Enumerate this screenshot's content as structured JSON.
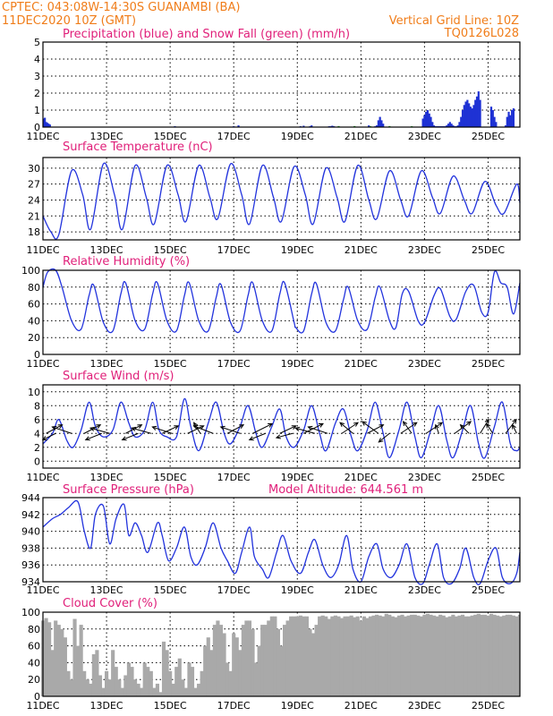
{
  "header": {
    "line1": "CPTEC:   043:08W-14:30S   GUANAMBI (BA)",
    "line2": "11DEC2020 10Z (GMT)",
    "grid_note": "Vertical Grid Line: 10Z",
    "code": "TQ0126L028"
  },
  "x_labels": [
    "11DEC",
    "13DEC",
    "15DEC",
    "17DEC",
    "19DEC",
    "21DEC",
    "23DEC",
    "25DEC"
  ],
  "panel_titles": {
    "precip": "Precipitation (blue) and Snow Fall (green) (mm/h)",
    "temp": "Surface Temperature (nC)",
    "rh": "Relative Humidity (%)",
    "wind": "Surface Wind (m/s)",
    "pres": "Surface Pressure (hPa)",
    "pres_alt": "Model Altitude: 644.561 m",
    "cloud": "Cloud Cover (%)"
  },
  "colors": {
    "header": "#f07d1a",
    "title": "#e0207a",
    "line": "#2233dd",
    "bars": "#a9a9a9",
    "precip": "#1f32d4",
    "snow": "#22aa22"
  },
  "chart_data": [
    {
      "id": "precip",
      "type": "bar",
      "title": "Precipitation (blue) and Snow Fall (green) (mm/h)",
      "ylim": [
        0,
        5
      ],
      "yticks": [
        0,
        1,
        2,
        3,
        4,
        5
      ],
      "x_units": "days since 11DEC 10Z",
      "series": [
        {
          "name": "Precipitation",
          "color": "#1f32d4",
          "x": [
            0.02,
            0.06,
            0.1,
            0.14,
            0.18,
            0.22,
            4.15,
            6.0,
            6.15,
            8.1,
            8.2,
            8.4,
            8.45,
            9.0,
            9.05,
            9.1,
            9.15,
            10.25,
            10.45,
            10.5,
            10.55,
            10.6,
            10.65,
            10.7,
            11.95,
            12.0,
            12.05,
            12.1,
            12.15,
            12.2,
            12.25,
            12.3,
            12.35,
            12.4,
            12.45,
            12.5,
            12.55,
            12.6,
            12.65,
            12.7,
            12.75,
            12.8,
            12.85,
            12.9,
            12.95,
            13.0,
            13.05,
            13.1,
            13.15,
            13.2,
            13.25,
            13.3,
            13.35,
            13.4,
            13.45,
            13.5,
            13.55,
            13.6,
            13.65,
            13.7,
            13.75,
            14.1,
            14.15,
            14.2,
            14.25,
            14.55,
            14.6,
            14.65,
            14.7,
            14.75,
            14.8
          ],
          "values": [
            0.5,
            0.55,
            0.3,
            0.25,
            0.2,
            0.15,
            0.05,
            0.05,
            0.1,
            0.05,
            0.08,
            0.05,
            0.1,
            0.05,
            0.05,
            0.08,
            0.05,
            0.1,
            0.05,
            0.1,
            0.4,
            0.6,
            0.4,
            0.2,
            0.5,
            0.7,
            0.9,
            1.0,
            0.8,
            0.6,
            0.3,
            0.1,
            0.05,
            0.05,
            0.05,
            0.05,
            0.05,
            0.05,
            0.05,
            0.1,
            0.2,
            0.3,
            0.2,
            0.1,
            0.05,
            0.05,
            0.1,
            0.3,
            0.6,
            1.0,
            1.3,
            1.5,
            1.6,
            1.4,
            1.2,
            1.1,
            1.3,
            1.6,
            1.8,
            2.1,
            1.6,
            1.2,
            1.0,
            0.6,
            0.3,
            0.1,
            0.6,
            0.9,
            0.7,
            1.0,
            1.1
          ]
        },
        {
          "name": "Snow Fall",
          "color": "#22aa22",
          "x": [
            9.3,
            9.8,
            10.3,
            10.9,
            11.6
          ],
          "values": [
            0.06,
            0.06,
            0.05,
            0.06,
            0.05
          ]
        }
      ]
    },
    {
      "id": "temp",
      "type": "line",
      "title": "Surface Temperature (nC)",
      "ylim": [
        16.5,
        32
      ],
      "yticks": [
        18,
        21,
        24,
        27,
        30
      ],
      "x": [
        0.0,
        0.25,
        0.5,
        0.9,
        1.25,
        1.5,
        1.9,
        2.25,
        2.5,
        2.9,
        3.25,
        3.5,
        3.9,
        4.25,
        4.5,
        4.9,
        5.25,
        5.5,
        5.9,
        6.25,
        6.5,
        6.9,
        7.25,
        7.5,
        7.9,
        8.25,
        8.5,
        8.9,
        9.25,
        9.5,
        9.9,
        10.25,
        10.5,
        10.9,
        11.25,
        11.5,
        11.9,
        12.25,
        12.5,
        12.9,
        13.25,
        13.5,
        13.9,
        14.25,
        14.5,
        14.9,
        15.0
      ],
      "series": [
        {
          "values": [
            21.0,
            18.0,
            17.5,
            29.5,
            25.0,
            18.5,
            30.8,
            25.0,
            18.5,
            30.5,
            24.5,
            19.5,
            30.5,
            25.0,
            20.0,
            30.5,
            24.5,
            20.5,
            30.8,
            25.0,
            19.5,
            30.5,
            24.5,
            20.0,
            30.3,
            25.0,
            19.5,
            30.0,
            24.5,
            20.0,
            30.5,
            24.0,
            20.5,
            29.5,
            24.0,
            21.0,
            29.5,
            24.5,
            21.5,
            28.5,
            24.0,
            21.5,
            27.5,
            23.0,
            21.5,
            27.0,
            23.5
          ]
        }
      ]
    },
    {
      "id": "rh",
      "type": "line",
      "title": "Relative Humidity (%)",
      "ylim": [
        0,
        100
      ],
      "yticks": [
        0,
        20,
        40,
        60,
        80,
        100
      ],
      "x": [
        0.0,
        0.15,
        0.4,
        0.6,
        0.9,
        1.2,
        1.45,
        1.6,
        1.9,
        2.2,
        2.45,
        2.6,
        2.9,
        3.2,
        3.45,
        3.6,
        3.9,
        4.2,
        4.45,
        4.6,
        4.9,
        5.2,
        5.45,
        5.6,
        5.9,
        6.2,
        6.45,
        6.6,
        6.9,
        7.2,
        7.45,
        7.6,
        7.9,
        7.95,
        8.2,
        8.45,
        8.6,
        8.9,
        9.2,
        9.45,
        9.6,
        9.9,
        10.2,
        10.45,
        10.6,
        10.9,
        11.1,
        11.3,
        11.5,
        11.8,
        12.0,
        12.3,
        12.5,
        12.8,
        13.0,
        13.3,
        13.55,
        13.8,
        14.0,
        14.2,
        14.4,
        14.6,
        14.8,
        15.0
      ],
      "series": [
        {
          "values": [
            80,
            98,
            100,
            80,
            40,
            30,
            70,
            82,
            38,
            28,
            72,
            85,
            40,
            30,
            72,
            85,
            40,
            28,
            70,
            85,
            40,
            28,
            68,
            83,
            38,
            28,
            70,
            85,
            40,
            28,
            72,
            85,
            38,
            32,
            28,
            72,
            84,
            38,
            28,
            65,
            80,
            40,
            30,
            68,
            80,
            40,
            32,
            72,
            75,
            40,
            38,
            70,
            78,
            45,
            42,
            75,
            82,
            50,
            50,
            98,
            85,
            80,
            48,
            85
          ]
        }
      ]
    },
    {
      "id": "wind",
      "type": "line",
      "title": "Surface Wind (m/s)",
      "ylim": [
        -1,
        11
      ],
      "yticks": [
        0,
        2,
        4,
        6,
        8,
        10
      ],
      "x": [
        0.0,
        0.3,
        0.5,
        0.75,
        0.95,
        1.2,
        1.45,
        1.65,
        1.9,
        2.2,
        2.45,
        2.7,
        2.9,
        3.2,
        3.45,
        3.65,
        3.9,
        4.2,
        4.45,
        4.65,
        4.9,
        5.2,
        5.45,
        5.7,
        5.9,
        6.2,
        6.45,
        6.7,
        6.9,
        7.2,
        7.45,
        7.65,
        7.9,
        8.2,
        8.45,
        8.7,
        8.9,
        9.2,
        9.45,
        9.7,
        9.9,
        10.2,
        10.45,
        10.7,
        10.9,
        11.2,
        11.45,
        11.7,
        11.9,
        12.2,
        12.45,
        12.7,
        12.9,
        13.2,
        13.45,
        13.7,
        13.9,
        14.2,
        14.45,
        14.7,
        14.9,
        15.0
      ],
      "series": [
        {
          "values": [
            2.5,
            4.0,
            6.0,
            3.0,
            2.0,
            4.5,
            8.5,
            5.0,
            3.5,
            4.5,
            8.5,
            5.5,
            3.5,
            4.5,
            8.5,
            4.5,
            3.5,
            3.5,
            9.0,
            5.0,
            1.5,
            5.5,
            8.5,
            4.0,
            2.5,
            5.0,
            8.0,
            4.0,
            2.0,
            5.0,
            7.5,
            3.5,
            2.0,
            4.5,
            8.0,
            4.0,
            1.5,
            5.5,
            7.5,
            3.5,
            1.5,
            4.5,
            8.5,
            4.0,
            0.5,
            4.5,
            8.5,
            3.5,
            0.5,
            4.5,
            8.0,
            3.0,
            0.5,
            4.5,
            8.0,
            2.5,
            0.5,
            5.0,
            8.5,
            2.5,
            1.5,
            2.0
          ]
        }
      ],
      "vectors": {
        "x": [
          0.1,
          0.4,
          0.9,
          1.3,
          1.85,
          2.1,
          2.6,
          3.0,
          3.4,
          3.75,
          4.05,
          4.55,
          4.95,
          5.35,
          5.8,
          6.2,
          6.6,
          7.0,
          7.45,
          7.85,
          8.2,
          8.55,
          8.95,
          9.4,
          9.75,
          10.2,
          10.55,
          10.9,
          11.25,
          11.6,
          12.05,
          12.45,
          12.95,
          13.4,
          13.75,
          14.15,
          14.55,
          14.9
        ],
        "u": [
          1.5,
          -1.2,
          -1.8,
          1.5,
          -1.5,
          -1.8,
          1.5,
          -1.5,
          -1.8,
          1.5,
          -1.8,
          1.5,
          -0.6,
          -1.8,
          1.5,
          -1.8,
          1.8,
          -1.5,
          1.5,
          -1.5,
          1.8,
          -1.8,
          -1.8,
          1.5,
          -1.2,
          1.5,
          -1.5,
          -1.0,
          1.5,
          -0.8,
          1.5,
          -0.3,
          1.5,
          -0.8,
          0.8,
          -0.6,
          1.0,
          -0.4
        ],
        "v": [
          0.8,
          -0.6,
          0.6,
          0.8,
          -0.6,
          0.5,
          0.8,
          -0.6,
          0.5,
          0.7,
          0.6,
          0.7,
          1.0,
          0.7,
          0.8,
          0.6,
          0.9,
          -0.6,
          0.7,
          -0.4,
          0.9,
          0.5,
          0.6,
          1.0,
          1.0,
          0.8,
          1.1,
          -0.8,
          1.0,
          1.1,
          1.0,
          0.8,
          1.1,
          0.8,
          1.3,
          0.9,
          1.3,
          0.8
        ]
      }
    },
    {
      "id": "pres",
      "type": "line",
      "title": "Surface Pressure (hPa)",
      "ylim": [
        934,
        944
      ],
      "yticks": [
        934,
        936,
        938,
        940,
        942,
        944
      ],
      "x": [
        0.0,
        0.3,
        0.55,
        0.8,
        1.1,
        1.3,
        1.5,
        1.65,
        1.9,
        2.1,
        2.3,
        2.55,
        2.7,
        2.9,
        3.1,
        3.3,
        3.6,
        3.75,
        3.95,
        4.2,
        4.45,
        4.65,
        4.85,
        5.1,
        5.35,
        5.6,
        5.8,
        6.05,
        6.25,
        6.5,
        6.65,
        6.9,
        7.1,
        7.35,
        7.55,
        7.8,
        8.1,
        8.35,
        8.55,
        8.8,
        9.05,
        9.3,
        9.55,
        9.75,
        10.0,
        10.25,
        10.5,
        10.7,
        10.95,
        11.2,
        11.45,
        11.7,
        11.95,
        12.15,
        12.4,
        12.6,
        12.85,
        13.1,
        13.3,
        13.55,
        13.75,
        14.0,
        14.25,
        14.45,
        14.7,
        14.9,
        15.0
      ],
      "series": [
        {
          "values": [
            940.5,
            941.5,
            942.0,
            942.8,
            943.5,
            940.0,
            938.0,
            942.0,
            943.0,
            938.5,
            941.5,
            943.2,
            939.5,
            941.0,
            939.5,
            937.5,
            941.0,
            939.5,
            936.5,
            938.0,
            940.5,
            937.0,
            936.0,
            938.0,
            941.0,
            938.0,
            936.5,
            935.0,
            937.5,
            940.5,
            937.0,
            935.5,
            934.5,
            937.5,
            939.5,
            936.5,
            935.0,
            937.5,
            939.0,
            936.0,
            934.5,
            936.0,
            939.5,
            935.5,
            934.0,
            937.0,
            938.5,
            935.5,
            934.5,
            936.0,
            938.5,
            934.5,
            933.5,
            936.0,
            938.5,
            934.5,
            933.5,
            935.5,
            938.0,
            934.5,
            933.5,
            936.5,
            938.0,
            934.5,
            933.5,
            935.0,
            937.5
          ]
        }
      ]
    },
    {
      "id": "cloud",
      "type": "bar",
      "title": "Cloud Cover (%)",
      "ylim": [
        0,
        100
      ],
      "yticks": [
        0,
        20,
        40,
        60,
        80,
        100
      ],
      "x": [
        0.0,
        0.1,
        0.2,
        0.3,
        0.4,
        0.5,
        0.6,
        0.7,
        0.8,
        0.9,
        1.0,
        1.1,
        1.2,
        1.3,
        1.4,
        1.5,
        1.6,
        1.7,
        1.8,
        1.9,
        2.0,
        2.1,
        2.2,
        2.3,
        2.4,
        2.5,
        2.6,
        2.7,
        2.8,
        2.9,
        3.0,
        3.1,
        3.2,
        3.3,
        3.4,
        3.5,
        3.6,
        3.7,
        3.8,
        3.9,
        4.0,
        4.1,
        4.2,
        4.3,
        4.4,
        4.5,
        4.6,
        4.7,
        4.8,
        4.9,
        5.0,
        5.1,
        5.2,
        5.3,
        5.4,
        5.5,
        5.6,
        5.7,
        5.8,
        5.9,
        6.0,
        6.1,
        6.2,
        6.3,
        6.4,
        6.5,
        6.6,
        6.7,
        6.8,
        6.9,
        7.0,
        7.1,
        7.2,
        7.3,
        7.4,
        7.5,
        7.6,
        7.7,
        7.8,
        7.9,
        8.0,
        8.1,
        8.2,
        8.3,
        8.4,
        8.5,
        8.6,
        8.7,
        8.8,
        8.9,
        9.0,
        9.1,
        9.2,
        9.3,
        9.4,
        9.5,
        9.6,
        9.7,
        9.8,
        9.9,
        10.0,
        10.1,
        10.2,
        10.3,
        10.4,
        10.5,
        10.6,
        10.7,
        10.8,
        10.9,
        11.0,
        11.1,
        11.2,
        11.3,
        11.4,
        11.5,
        11.6,
        11.7,
        11.8,
        11.9,
        12.0,
        12.1,
        12.2,
        12.3,
        12.4,
        12.5,
        12.6,
        12.7,
        12.8,
        12.9,
        13.0,
        13.1,
        13.2,
        13.3,
        13.4,
        13.5,
        13.6,
        13.7,
        13.8,
        13.9,
        14.0,
        14.1,
        14.2,
        14.3,
        14.4,
        14.5,
        14.6,
        14.7,
        14.8,
        14.9,
        15.0
      ],
      "values": [
        90,
        93,
        88,
        55,
        90,
        85,
        80,
        70,
        30,
        20,
        92,
        60,
        85,
        30,
        20,
        15,
        50,
        55,
        25,
        10,
        30,
        20,
        55,
        35,
        20,
        10,
        25,
        40,
        35,
        20,
        15,
        10,
        40,
        35,
        30,
        10,
        15,
        5,
        65,
        55,
        30,
        15,
        35,
        45,
        20,
        10,
        40,
        35,
        10,
        15,
        30,
        60,
        70,
        55,
        85,
        90,
        85,
        75,
        40,
        30,
        75,
        70,
        55,
        85,
        90,
        90,
        80,
        40,
        60,
        85,
        85,
        90,
        95,
        95,
        80,
        60,
        85,
        90,
        95,
        95,
        95,
        96,
        95,
        95,
        80,
        75,
        85,
        95,
        96,
        95,
        92,
        95,
        96,
        95,
        93,
        95,
        95,
        96,
        94,
        95,
        90,
        95,
        93,
        95,
        96,
        97,
        96,
        95,
        98,
        97,
        95,
        94,
        96,
        97,
        95,
        96,
        97,
        97,
        96,
        95,
        97,
        98,
        97,
        96,
        95,
        97,
        96,
        94,
        95,
        97,
        95,
        96,
        97,
        95,
        95,
        96,
        97,
        98,
        97,
        97,
        96,
        98,
        97,
        96,
        95,
        96,
        97,
        97,
        96,
        95,
        97
      ]
    }
  ]
}
